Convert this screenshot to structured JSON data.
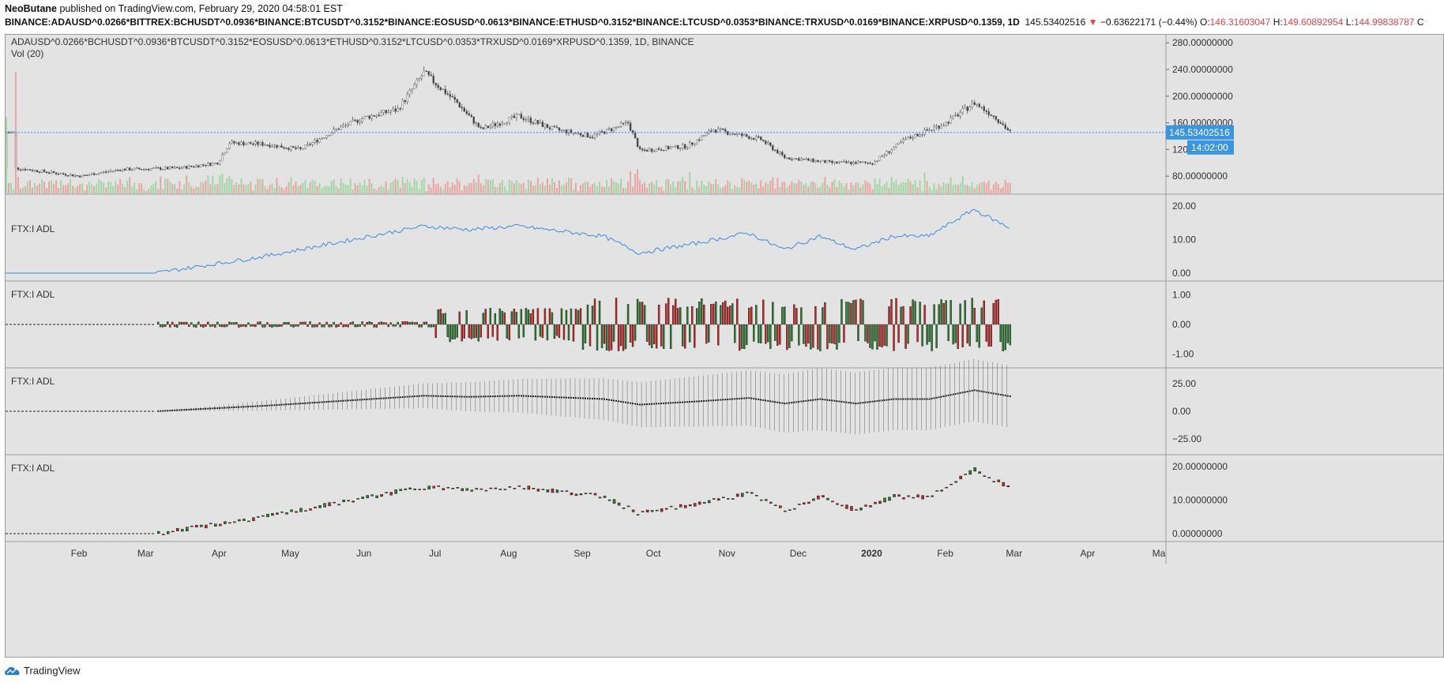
{
  "header": {
    "publisher": "NeoButane",
    "published_text": "published on TradingView.com, February 29, 2020 04:58:01 EST"
  },
  "symbol_line": {
    "symbol": "BINANCE:ADAUSD^0.0266*BITTREX:BCHUSDT^0.0936*BINANCE:BTCUSDT^0.3152*BINANCE:EOSUSD^0.0613*BINANCE:ETHUSD^0.3152*BINANCE:LTCUSD^0.0353*BINANCE:TRXUSD^0.0169*BINANCE:XRPUSD^0.1359, 1D",
    "last": "145.53402516",
    "change_arrow": "▼",
    "change": "−0.63622171 (−0.44%)",
    "o_label": "O:",
    "o_value": "146.31603047",
    "h_label": "H:",
    "h_value": "149.60892954",
    "l_label": "L:",
    "l_value": "144.99838787",
    "c_label": "C"
  },
  "panels": {
    "main_title": "ADAUSD^0.0266*BCHUSDT^0.0936*BTCUSDT^0.3152*EOSUSD^0.0613*ETHUSD^0.3152*LTCUSD^0.0353*TRXUSD^0.0169*XRPUSD^0.1359, 1D, BINANCE",
    "vol_label": "Vol (20)",
    "adl1": "FTX:I ADL",
    "adl2": "FTX:I ADL",
    "adl3": "FTX:I ADL",
    "adl4": "FTX:I ADL"
  },
  "price_axis": {
    "main_ticks": [
      "280.00000000",
      "240.00000000",
      "200.00000000",
      "160.00000000",
      "120.00000000",
      "80.00000000"
    ],
    "price_tag": "145.53402516",
    "time_tag": "14:02:00",
    "adl1_ticks": [
      "20.00",
      "10.00",
      "0.00"
    ],
    "adl2_ticks": [
      "1.00",
      "0.00",
      "-1.00"
    ],
    "adl3_ticks": [
      "25.00",
      "0.00",
      "−25.00"
    ],
    "adl4_ticks": [
      "20.00000000",
      "10.00000000",
      "0.00000000"
    ]
  },
  "time_axis": [
    "Feb",
    "Mar",
    "Apr",
    "May",
    "Jun",
    "Jul",
    "Aug",
    "Sep",
    "Oct",
    "Nov",
    "Dec",
    "2020",
    "Feb",
    "Mar",
    "Apr",
    "Ma"
  ],
  "colors": {
    "up": "#2e7d32",
    "down": "#c62828",
    "line": "#3d8be0",
    "tag_bg": "#3a95e0"
  },
  "footer": {
    "brand": "TradingView",
    "logo_icon": "tradingview-cloud-icon"
  },
  "chart_data": {
    "type": "candlestick",
    "main_ylim": [
      60,
      285
    ],
    "last_price": 145.53,
    "price_path_keypoints": [
      {
        "date": "2019-01-05",
        "value": 92
      },
      {
        "date": "2019-02-01",
        "value": 80
      },
      {
        "date": "2019-02-18",
        "value": 90
      },
      {
        "date": "2019-03-15",
        "value": 92
      },
      {
        "date": "2019-03-31",
        "value": 100
      },
      {
        "date": "2019-04-05",
        "value": 130
      },
      {
        "date": "2019-04-20",
        "value": 128
      },
      {
        "date": "2019-05-05",
        "value": 120
      },
      {
        "date": "2019-05-20",
        "value": 150
      },
      {
        "date": "2019-06-01",
        "value": 168
      },
      {
        "date": "2019-06-15",
        "value": 180
      },
      {
        "date": "2019-06-26",
        "value": 235
      },
      {
        "date": "2019-07-10",
        "value": 190
      },
      {
        "date": "2019-07-20",
        "value": 150
      },
      {
        "date": "2019-08-05",
        "value": 170
      },
      {
        "date": "2019-08-20",
        "value": 150
      },
      {
        "date": "2019-09-05",
        "value": 140
      },
      {
        "date": "2019-09-20",
        "value": 160
      },
      {
        "date": "2019-09-25",
        "value": 118
      },
      {
        "date": "2019-10-15",
        "value": 125
      },
      {
        "date": "2019-10-26",
        "value": 150
      },
      {
        "date": "2019-11-15",
        "value": 135
      },
      {
        "date": "2019-11-25",
        "value": 108
      },
      {
        "date": "2019-12-15",
        "value": 100
      },
      {
        "date": "2020-01-01",
        "value": 100
      },
      {
        "date": "2020-01-15",
        "value": 135
      },
      {
        "date": "2020-02-01",
        "value": 160
      },
      {
        "date": "2020-02-13",
        "value": 190
      },
      {
        "date": "2020-02-22",
        "value": 168
      },
      {
        "date": "2020-02-28",
        "value": 145.5
      }
    ],
    "adl_ylim": [
      0,
      20
    ],
    "adl_path_keypoints": [
      {
        "date": "2019-01-01",
        "value": 0
      },
      {
        "date": "2019-03-05",
        "value": 0
      },
      {
        "date": "2019-04-20",
        "value": 5
      },
      {
        "date": "2019-06-26",
        "value": 14
      },
      {
        "date": "2019-07-15",
        "value": 13
      },
      {
        "date": "2019-08-05",
        "value": 14
      },
      {
        "date": "2019-09-10",
        "value": 11
      },
      {
        "date": "2019-09-25",
        "value": 6
      },
      {
        "date": "2019-10-20",
        "value": 9
      },
      {
        "date": "2019-11-10",
        "value": 12
      },
      {
        "date": "2019-11-25",
        "value": 7
      },
      {
        "date": "2019-12-10",
        "value": 11
      },
      {
        "date": "2019-12-25",
        "value": 7
      },
      {
        "date": "2020-01-10",
        "value": 11
      },
      {
        "date": "2020-01-25",
        "value": 11
      },
      {
        "date": "2020-02-13",
        "value": 19
      },
      {
        "date": "2020-02-28",
        "value": 13.5
      }
    ],
    "oscillator_ylim": [
      -1.2,
      1.2
    ],
    "band_ylim": [
      -32,
      32
    ]
  }
}
